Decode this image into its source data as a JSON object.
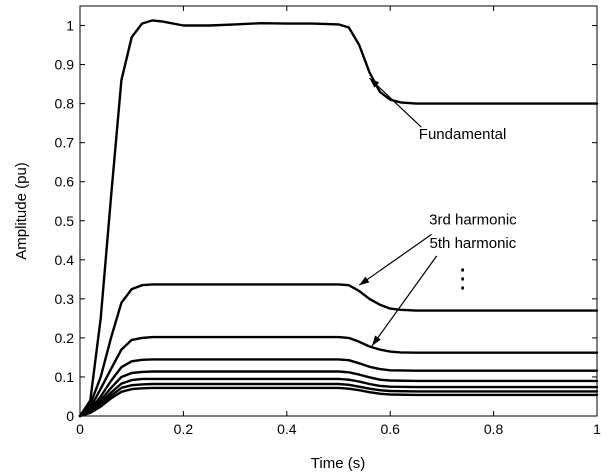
{
  "chart_data": {
    "type": "line",
    "title": "",
    "xlabel": "Time (s)",
    "ylabel": "Amplitude (pu)",
    "xlim": [
      0,
      1
    ],
    "ylim": [
      0,
      1.05
    ],
    "xticks": [
      0,
      0.2,
      0.4,
      0.6,
      0.8,
      1
    ],
    "xtick_labels": [
      "0",
      "0.2",
      "0.4",
      "0.6",
      "0.8",
      "1"
    ],
    "yticks": [
      0,
      0.1,
      0.2,
      0.3,
      0.4,
      0.5,
      0.6,
      0.7,
      0.8,
      0.9,
      1
    ],
    "ytick_labels": [
      "0",
      "0.1",
      "0.2",
      "0.3",
      "0.4",
      "0.5",
      "0.6",
      "0.7",
      "0.8",
      "0.9",
      "1"
    ],
    "grid": false,
    "series": [
      {
        "key": "fundamental",
        "x": [
          0,
          0.02,
          0.04,
          0.06,
          0.08,
          0.1,
          0.12,
          0.14,
          0.16,
          0.2,
          0.25,
          0.3,
          0.35,
          0.4,
          0.45,
          0.5,
          0.52,
          0.54,
          0.56,
          0.58,
          0.6,
          0.62,
          0.65,
          0.7,
          0.8,
          0.9,
          1.0
        ],
        "y": [
          0,
          0.04,
          0.25,
          0.56,
          0.86,
          0.97,
          1.005,
          1.013,
          1.01,
          1.0,
          1.0,
          1.003,
          1.006,
          1.005,
          1.005,
          1.003,
          0.995,
          0.95,
          0.88,
          0.83,
          0.81,
          0.803,
          0.8,
          0.8,
          0.8,
          0.8,
          0.8
        ]
      },
      {
        "key": "h3",
        "x": [
          0,
          0.02,
          0.04,
          0.06,
          0.08,
          0.1,
          0.12,
          0.14,
          0.2,
          0.3,
          0.4,
          0.5,
          0.52,
          0.54,
          0.56,
          0.58,
          0.6,
          0.62,
          0.65,
          0.7,
          0.8,
          1.0
        ],
        "y": [
          0,
          0.03,
          0.1,
          0.2,
          0.29,
          0.325,
          0.335,
          0.337,
          0.337,
          0.337,
          0.337,
          0.337,
          0.335,
          0.32,
          0.3,
          0.285,
          0.275,
          0.272,
          0.27,
          0.27,
          0.27,
          0.27
        ]
      },
      {
        "key": "h5",
        "x": [
          0,
          0.02,
          0.04,
          0.06,
          0.08,
          0.1,
          0.12,
          0.14,
          0.2,
          0.3,
          0.4,
          0.5,
          0.52,
          0.54,
          0.56,
          0.58,
          0.6,
          0.62,
          0.65,
          0.7,
          0.8,
          1.0
        ],
        "y": [
          0,
          0.02,
          0.07,
          0.12,
          0.17,
          0.195,
          0.2,
          0.202,
          0.202,
          0.202,
          0.202,
          0.202,
          0.2,
          0.19,
          0.178,
          0.17,
          0.165,
          0.163,
          0.162,
          0.162,
          0.162,
          0.162
        ]
      },
      {
        "key": "h7",
        "x": [
          0,
          0.02,
          0.04,
          0.06,
          0.08,
          0.1,
          0.12,
          0.14,
          0.2,
          0.3,
          0.4,
          0.5,
          0.52,
          0.54,
          0.56,
          0.58,
          0.6,
          0.65,
          0.7,
          1.0
        ],
        "y": [
          0,
          0.015,
          0.05,
          0.09,
          0.125,
          0.14,
          0.144,
          0.145,
          0.145,
          0.145,
          0.145,
          0.145,
          0.143,
          0.135,
          0.126,
          0.12,
          0.117,
          0.116,
          0.116,
          0.116
        ]
      },
      {
        "key": "h9",
        "x": [
          0,
          0.02,
          0.04,
          0.06,
          0.08,
          0.1,
          0.12,
          0.14,
          0.2,
          0.3,
          0.4,
          0.5,
          0.52,
          0.54,
          0.56,
          0.58,
          0.6,
          0.65,
          0.7,
          1.0
        ],
        "y": [
          0,
          0.012,
          0.04,
          0.072,
          0.1,
          0.11,
          0.113,
          0.114,
          0.114,
          0.114,
          0.114,
          0.114,
          0.112,
          0.106,
          0.099,
          0.093,
          0.091,
          0.09,
          0.09,
          0.09
        ]
      },
      {
        "key": "h11",
        "x": [
          0,
          0.02,
          0.04,
          0.06,
          0.08,
          0.1,
          0.12,
          0.14,
          0.2,
          0.3,
          0.4,
          0.5,
          0.52,
          0.54,
          0.56,
          0.58,
          0.6,
          0.65,
          0.7,
          1.0
        ],
        "y": [
          0,
          0.01,
          0.033,
          0.06,
          0.083,
          0.092,
          0.095,
          0.095,
          0.095,
          0.095,
          0.095,
          0.095,
          0.093,
          0.088,
          0.082,
          0.077,
          0.075,
          0.074,
          0.074,
          0.074
        ]
      },
      {
        "key": "h13",
        "x": [
          0,
          0.02,
          0.04,
          0.06,
          0.08,
          0.1,
          0.12,
          0.14,
          0.2,
          0.3,
          0.4,
          0.5,
          0.52,
          0.54,
          0.56,
          0.58,
          0.6,
          0.65,
          0.7,
          1.0
        ],
        "y": [
          0,
          0.009,
          0.028,
          0.052,
          0.072,
          0.079,
          0.081,
          0.082,
          0.082,
          0.082,
          0.082,
          0.082,
          0.08,
          0.075,
          0.07,
          0.066,
          0.064,
          0.063,
          0.063,
          0.063
        ]
      },
      {
        "key": "h15",
        "x": [
          0,
          0.02,
          0.04,
          0.06,
          0.08,
          0.1,
          0.12,
          0.14,
          0.2,
          0.3,
          0.4,
          0.5,
          0.52,
          0.54,
          0.56,
          0.58,
          0.6,
          0.65,
          0.7,
          1.0
        ],
        "y": [
          0,
          0.008,
          0.024,
          0.045,
          0.062,
          0.069,
          0.071,
          0.072,
          0.072,
          0.072,
          0.072,
          0.072,
          0.07,
          0.066,
          0.061,
          0.057,
          0.055,
          0.054,
          0.054,
          0.054
        ]
      }
    ],
    "annotations": [
      {
        "key": "fundamental",
        "text": "Fundamental",
        "x": 0.74,
        "y": 0.71,
        "arrow_from": [
          0.66,
          0.74
        ],
        "arrow_to": [
          0.56,
          0.865
        ]
      },
      {
        "key": "h3",
        "text": "3rd harmonic",
        "x": 0.76,
        "y": 0.49,
        "arrow_from": [
          0.68,
          0.465
        ],
        "arrow_to": [
          0.54,
          0.335
        ]
      },
      {
        "key": "h5",
        "text": "5th harmonic",
        "x": 0.76,
        "y": 0.43,
        "arrow_from": [
          0.69,
          0.41
        ],
        "arrow_to": [
          0.565,
          0.18
        ]
      }
    ],
    "ellipsis": {
      "text": "⋮",
      "x": 0.74,
      "y": 0.33
    }
  },
  "colors": {
    "line": "#000000",
    "axis": "#000000",
    "background": "#ffffff"
  }
}
